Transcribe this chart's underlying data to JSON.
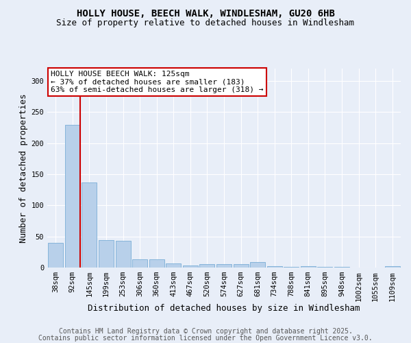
{
  "title": "HOLLY HOUSE, BEECH WALK, WINDLESHAM, GU20 6HB",
  "subtitle": "Size of property relative to detached houses in Windlesham",
  "xlabel": "Distribution of detached houses by size in Windlesham",
  "ylabel": "Number of detached properties",
  "categories": [
    "38sqm",
    "92sqm",
    "145sqm",
    "199sqm",
    "253sqm",
    "306sqm",
    "360sqm",
    "413sqm",
    "467sqm",
    "520sqm",
    "574sqm",
    "627sqm",
    "681sqm",
    "734sqm",
    "788sqm",
    "841sqm",
    "895sqm",
    "948sqm",
    "1002sqm",
    "1055sqm",
    "1109sqm"
  ],
  "values": [
    40,
    230,
    137,
    44,
    43,
    13,
    13,
    7,
    3,
    6,
    5,
    5,
    9,
    2,
    1,
    2,
    1,
    1,
    0,
    0,
    2
  ],
  "bar_color": "#b8d0ea",
  "bar_edge_color": "#7aaed6",
  "property_line_color": "#cc0000",
  "annotation_text": "HOLLY HOUSE BEECH WALK: 125sqm\n← 37% of detached houses are smaller (183)\n63% of semi-detached houses are larger (318) →",
  "annotation_box_color": "#ffffff",
  "annotation_box_edge": "#cc0000",
  "ylim": [
    0,
    320
  ],
  "yticks": [
    0,
    50,
    100,
    150,
    200,
    250,
    300
  ],
  "footer_line1": "Contains HM Land Registry data © Crown copyright and database right 2025.",
  "footer_line2": "Contains public sector information licensed under the Open Government Licence v3.0.",
  "bg_color": "#e8eef8",
  "plot_bg_color": "#e8eef8",
  "title_fontsize": 10,
  "subtitle_fontsize": 9,
  "axis_label_fontsize": 9,
  "tick_fontsize": 7.5,
  "annotation_fontsize": 8,
  "footer_fontsize": 7
}
